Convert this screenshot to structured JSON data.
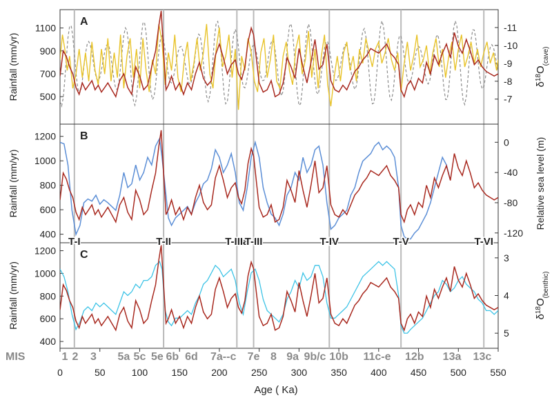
{
  "chart_data": {
    "type": "line",
    "xlabel": "Age ( Ka)",
    "xlim": [
      0,
      550
    ],
    "xticks": [
      0,
      50,
      100,
      150,
      200,
      250,
      300,
      350,
      400,
      450,
      500,
      550
    ],
    "terminations": [
      {
        "label": "T-I",
        "age": 18
      },
      {
        "label": "T-II",
        "age": 130
      },
      {
        "label": "T-IIIa",
        "age": 222
      },
      {
        "label": "T-III",
        "age": 243
      },
      {
        "label": "T-IV",
        "age": 338
      },
      {
        "label": "T-V",
        "age": 428
      },
      {
        "label": "T-VI",
        "age": 532
      }
    ],
    "mis_title": "MIS",
    "mis_labels": [
      {
        "label": "1",
        "age": 6
      },
      {
        "label": "2",
        "age": 19
      },
      {
        "label": "3",
        "age": 42
      },
      {
        "label": "5a",
        "age": 80
      },
      {
        "label": "5c",
        "age": 100
      },
      {
        "label": "5e",
        "age": 122
      },
      {
        "label": "6b",
        "age": 141
      },
      {
        "label": "6d",
        "age": 165
      },
      {
        "label": "7a--c",
        "age": 205
      },
      {
        "label": "7e",
        "age": 243
      },
      {
        "label": "8",
        "age": 268
      },
      {
        "label": "9a",
        "age": 292
      },
      {
        "label": "9b/c",
        "age": 320
      },
      {
        "label": "10b",
        "age": 350
      },
      {
        "label": "11c-e",
        "age": 398
      },
      {
        "label": "12b",
        "age": 445
      },
      {
        "label": "13a",
        "age": 492
      },
      {
        "label": "13c",
        "age": 530
      }
    ],
    "panels": [
      {
        "letter": "A",
        "left_label": "Rainfall (mm/yr)",
        "left_ticks": [
          500,
          700,
          900,
          1100
        ],
        "left_range": [
          260,
          1260
        ],
        "right_label_main": "δ",
        "right_label_sup": "18",
        "right_label_rest": "O",
        "right_label_sub": "(cave)",
        "right_ticks": [
          "-11",
          "-10",
          "-9",
          "-8",
          "-7"
        ],
        "right_tick_values": [
          -11,
          -10,
          -9,
          -8,
          -7
        ],
        "right_range": [
          -5.6,
          -12.0
        ],
        "right_reversed": true,
        "series": [
          {
            "kind": "rainfall",
            "color": "#a8281e"
          },
          {
            "kind": "cave_d18O_record",
            "color": "#e8c32a"
          },
          {
            "kind": "insolation_dashed",
            "color": "#8a8a8a"
          }
        ]
      },
      {
        "letter": "B",
        "left_label": "Rainfall (mm/yr)",
        "left_ticks": [
          400,
          600,
          800,
          1000,
          1200
        ],
        "left_range": [
          330,
          1300
        ],
        "right_label": "Relative sea level (m)",
        "right_ticks": [
          "0",
          "-40",
          "-80",
          "-120"
        ],
        "right_tick_values": [
          0,
          -40,
          -80,
          -120
        ],
        "right_range": [
          -133,
          24
        ],
        "series": [
          {
            "kind": "rainfall",
            "color": "#a8281e"
          },
          {
            "kind": "sea_level",
            "color": "#5b8ed6"
          }
        ]
      },
      {
        "letter": "C",
        "left_label": "Rainfall (mm/yr)",
        "left_ticks": [
          400,
          600,
          800,
          1000,
          1200
        ],
        "left_range": [
          340,
          1270
        ],
        "right_label_main": "δ",
        "right_label_sup": "18",
        "right_label_rest": "O",
        "right_label_sub": "(benthic)",
        "right_ticks": [
          "3",
          "4",
          "5"
        ],
        "right_tick_values": [
          3,
          4,
          5
        ],
        "right_range": [
          5.4,
          2.6
        ],
        "right_reversed": true,
        "series": [
          {
            "kind": "rainfall",
            "color": "#a8281e"
          },
          {
            "kind": "benthic_d18O",
            "color": "#3cc3e6"
          }
        ]
      }
    ],
    "rainfall_series": {
      "ages": [
        0,
        4,
        8,
        12,
        16,
        20,
        24,
        28,
        32,
        36,
        40,
        44,
        48,
        52,
        56,
        60,
        65,
        70,
        75,
        80,
        85,
        90,
        95,
        100,
        105,
        110,
        115,
        120,
        124,
        127,
        130,
        133,
        136,
        140,
        145,
        150,
        155,
        160,
        165,
        170,
        175,
        180,
        185,
        190,
        195,
        200,
        205,
        210,
        215,
        220,
        224,
        228,
        232,
        236,
        240,
        243,
        246,
        250,
        255,
        260,
        265,
        270,
        275,
        280,
        285,
        290,
        295,
        300,
        305,
        310,
        315,
        320,
        325,
        330,
        335,
        340,
        345,
        350,
        355,
        360,
        365,
        370,
        375,
        380,
        385,
        390,
        395,
        400,
        405,
        410,
        415,
        420,
        425,
        428,
        432,
        436,
        440,
        445,
        450,
        455,
        460,
        465,
        470,
        475,
        480,
        485,
        490,
        495,
        500,
        505,
        510,
        515,
        520,
        525,
        530,
        535,
        540,
        545,
        550
      ],
      "values": [
        680,
        900,
        850,
        760,
        700,
        580,
        520,
        620,
        560,
        600,
        640,
        560,
        600,
        540,
        580,
        620,
        560,
        500,
        640,
        700,
        580,
        520,
        760,
        680,
        560,
        600,
        760,
        900,
        1120,
        1250,
        900,
        560,
        600,
        680,
        560,
        620,
        520,
        620,
        560,
        700,
        800,
        660,
        600,
        640,
        860,
        960,
        840,
        700,
        780,
        820,
        700,
        650,
        760,
        980,
        1100,
        1040,
        860,
        620,
        540,
        560,
        640,
        500,
        520,
        620,
        840,
        760,
        660,
        920,
        760,
        620,
        800,
        1000,
        740,
        780,
        960,
        640,
        560,
        540,
        600,
        560,
        640,
        720,
        760,
        820,
        860,
        920,
        900,
        880,
        920,
        960,
        880,
        840,
        780,
        560,
        500,
        600,
        640,
        560,
        660,
        620,
        800,
        700,
        860,
        780,
        880,
        960,
        840,
        1060,
        940,
        880,
        1000,
        900,
        780,
        820,
        760,
        720,
        700,
        680,
        700
      ]
    },
    "cave_series": {
      "ages": [
        0,
        3,
        6,
        9,
        12,
        16,
        20,
        24,
        28,
        32,
        36,
        40,
        44,
        48,
        52,
        56,
        60,
        64,
        68,
        72,
        76,
        80,
        84,
        88,
        92,
        96,
        100,
        104,
        108,
        112,
        116,
        120,
        124,
        128,
        132,
        136,
        140,
        144,
        148,
        152,
        156,
        160,
        164,
        168,
        172,
        176,
        180,
        184,
        188,
        192,
        196,
        200,
        204,
        208,
        212,
        216,
        220,
        224,
        228,
        232,
        236,
        240,
        244,
        248,
        252,
        256,
        260,
        264,
        268,
        272,
        276,
        280,
        284,
        288,
        292,
        296,
        300,
        304,
        308,
        312,
        316,
        320,
        324,
        328,
        332,
        336,
        340,
        344,
        348,
        352,
        356,
        360,
        364,
        368,
        372,
        376,
        380,
        384,
        388,
        392,
        396,
        400,
        404,
        408,
        412,
        416,
        420,
        424,
        428,
        432,
        436,
        440,
        444,
        448,
        452,
        456,
        460,
        464,
        468,
        472,
        476,
        480,
        484,
        488,
        492,
        496,
        500,
        504,
        508,
        512,
        516,
        520,
        524,
        528,
        532,
        536,
        540,
        544,
        548,
        550
      ],
      "values": [
        -9.2,
        -10.6,
        -9.8,
        -8.6,
        -9.4,
        -7.6,
        -8.4,
        -9.8,
        -8.2,
        -9.6,
        -8.0,
        -10.2,
        -8.6,
        -7.8,
        -9.8,
        -8.4,
        -10.4,
        -8.0,
        -9.6,
        -8.2,
        -10.6,
        -7.6,
        -9.4,
        -10.4,
        -8.2,
        -9.8,
        -7.6,
        -10.4,
        -8.6,
        -7.4,
        -9.2,
        -8.4,
        -11.2,
        -10.2,
        -7.8,
        -9.6,
        -8.6,
        -10.6,
        -8.2,
        -7.4,
        -9.2,
        -10.2,
        -8.0,
        -9.0,
        -10.4,
        -8.6,
        -9.6,
        -11.2,
        -8.4,
        -7.6,
        -9.8,
        -11.0,
        -8.8,
        -9.4,
        -10.6,
        -8.2,
        -9.8,
        -6.4,
        -9.4,
        -8.6,
        -10.4,
        -9.6,
        -8.0,
        -7.4,
        -9.6,
        -10.4,
        -8.2,
        -9.2,
        -10.6,
        -8.0,
        -7.6,
        -9.4,
        -10.2,
        -8.6,
        -7.8,
        -9.8,
        -10.6,
        -8.4,
        -9.2,
        -10.8,
        -8.2,
        -9.8,
        -7.6,
        -9.4,
        -10.6,
        -7.8,
        -6.6,
        -8.2,
        -9.4,
        -8.0,
        -9.6,
        -10.2,
        -8.6,
        -9.4,
        -8.0,
        -9.8,
        -9.0,
        -10.4,
        -9.6,
        -8.8,
        -9.8,
        -10.2,
        -9.0,
        -9.6,
        -10.4,
        -9.2,
        -8.6,
        -9.6,
        -7.4,
        -9.0,
        -10.2,
        -8.6,
        -9.4,
        -10.6,
        -8.8,
        -9.2,
        -10.0,
        -8.4,
        -9.6,
        -10.4,
        -8.8,
        -9.8,
        -8.2,
        -9.4,
        -10.2,
        -8.6,
        -9.8,
        -10.6,
        -8.8,
        -9.4,
        -10.2,
        -9.0,
        -9.8,
        -8.8,
        -9.6,
        -10.2,
        -9.0,
        -9.6,
        -8.6,
        -9.2
      ]
    },
    "insolation_series": {
      "period_ka": 23,
      "note_visible": false
    },
    "sea_level_series": {
      "ages": [
        0,
        5,
        10,
        15,
        20,
        25,
        30,
        35,
        40,
        45,
        50,
        55,
        60,
        65,
        70,
        75,
        80,
        85,
        90,
        95,
        100,
        105,
        110,
        115,
        120,
        125,
        128,
        132,
        136,
        140,
        145,
        150,
        155,
        160,
        165,
        170,
        175,
        180,
        185,
        190,
        195,
        200,
        205,
        210,
        215,
        220,
        225,
        230,
        235,
        240,
        245,
        250,
        255,
        260,
        265,
        270,
        275,
        280,
        285,
        290,
        295,
        300,
        305,
        310,
        315,
        320,
        325,
        330,
        335,
        340,
        345,
        350,
        355,
        360,
        365,
        370,
        375,
        380,
        385,
        390,
        395,
        400,
        405,
        410,
        415,
        420,
        425,
        428,
        432,
        436,
        440,
        445,
        450,
        455,
        460,
        465,
        470,
        475,
        480,
        485,
        490
      ],
      "values": [
        0,
        -2,
        -30,
        -90,
        -122,
        -110,
        -80,
        -75,
        -78,
        -70,
        -82,
        -76,
        -80,
        -85,
        -90,
        -70,
        -40,
        -60,
        -55,
        -30,
        -50,
        -40,
        -20,
        -30,
        -5,
        5,
        -20,
        -60,
        -100,
        -110,
        -100,
        -95,
        -90,
        -85,
        -95,
        -80,
        -70,
        -55,
        -50,
        -35,
        -10,
        -20,
        -40,
        -30,
        -15,
        -40,
        -80,
        -90,
        -60,
        -20,
        0,
        -20,
        -60,
        -80,
        -95,
        -100,
        -110,
        -95,
        -70,
        -60,
        -40,
        -50,
        -20,
        -40,
        -30,
        -10,
        -5,
        -30,
        -80,
        -115,
        -110,
        -100,
        -95,
        -90,
        -70,
        -60,
        -40,
        -25,
        -20,
        -15,
        -5,
        0,
        -10,
        -5,
        -10,
        -20,
        -60,
        -110,
        -125,
        -128,
        -128,
        -120,
        -115,
        -105,
        -95,
        -80,
        -60,
        -40,
        -20,
        -30,
        -50
      ]
    },
    "benthic_series": {
      "ages": [
        0,
        5,
        10,
        15,
        20,
        25,
        30,
        35,
        40,
        45,
        50,
        55,
        60,
        65,
        70,
        75,
        80,
        85,
        90,
        95,
        100,
        105,
        110,
        115,
        120,
        125,
        128,
        132,
        136,
        140,
        145,
        150,
        155,
        160,
        165,
        170,
        175,
        180,
        185,
        190,
        195,
        200,
        205,
        210,
        215,
        220,
        225,
        230,
        235,
        240,
        245,
        250,
        255,
        260,
        265,
        270,
        275,
        280,
        285,
        290,
        295,
        300,
        305,
        310,
        315,
        320,
        325,
        330,
        335,
        340,
        345,
        350,
        355,
        360,
        365,
        370,
        375,
        380,
        385,
        390,
        395,
        400,
        405,
        410,
        415,
        420,
        425,
        428,
        432,
        436,
        440,
        445,
        450,
        455,
        460,
        465,
        470,
        475,
        480,
        485,
        490,
        495,
        500,
        505,
        510,
        515,
        520,
        525,
        530,
        535,
        540,
        545,
        550
      ],
      "values": [
        3.3,
        3.5,
        3.9,
        4.5,
        4.9,
        4.7,
        4.4,
        4.3,
        4.4,
        4.2,
        4.3,
        4.2,
        4.3,
        4.4,
        4.5,
        4.2,
        3.9,
        4.0,
        3.9,
        3.7,
        3.8,
        3.6,
        3.6,
        3.5,
        3.2,
        3.1,
        3.3,
        4.4,
        4.7,
        4.8,
        4.6,
        4.6,
        4.5,
        4.4,
        4.5,
        4.2,
        4.0,
        3.7,
        3.6,
        3.4,
        3.2,
        3.3,
        3.5,
        3.4,
        3.3,
        3.6,
        4.2,
        4.5,
        3.9,
        3.4,
        3.3,
        3.6,
        4.1,
        4.4,
        4.5,
        4.6,
        4.7,
        4.5,
        4.1,
        3.9,
        3.6,
        3.8,
        3.4,
        3.6,
        3.5,
        3.2,
        3.2,
        3.5,
        4.2,
        4.6,
        4.6,
        4.5,
        4.4,
        4.3,
        4.1,
        3.9,
        3.7,
        3.5,
        3.4,
        3.3,
        3.2,
        3.1,
        3.2,
        3.1,
        3.2,
        3.3,
        4.0,
        4.8,
        5.0,
        5.0,
        4.9,
        4.8,
        4.7,
        4.6,
        4.4,
        4.2,
        4.0,
        3.9,
        3.6,
        3.7,
        3.9,
        3.8,
        3.6,
        3.5,
        3.7,
        3.8,
        3.9,
        4.1,
        4.2,
        4.4,
        4.4,
        4.5,
        4.4
      ]
    }
  }
}
